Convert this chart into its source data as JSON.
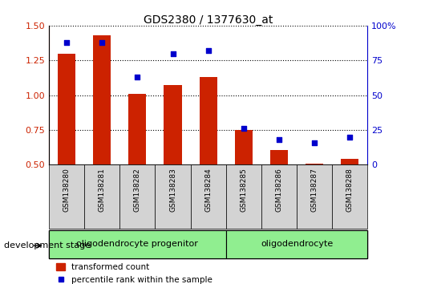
{
  "title": "GDS2380 / 1377630_at",
  "samples": [
    "GSM138280",
    "GSM138281",
    "GSM138282",
    "GSM138283",
    "GSM138284",
    "GSM138285",
    "GSM138286",
    "GSM138287",
    "GSM138288"
  ],
  "transformed_count": [
    1.295,
    1.43,
    1.01,
    1.07,
    1.13,
    0.75,
    0.605,
    0.505,
    0.545
  ],
  "percentile_rank": [
    88,
    88,
    63,
    80,
    82,
    26,
    18,
    16,
    20
  ],
  "ylim_left": [
    0.5,
    1.5
  ],
  "ylim_right": [
    0,
    100
  ],
  "yticks_left": [
    0.5,
    0.75,
    1.0,
    1.25,
    1.5
  ],
  "yticks_right": [
    0,
    25,
    50,
    75,
    100
  ],
  "groups": [
    {
      "label": "oligodendrocyte progenitor",
      "start": 0,
      "end": 5
    },
    {
      "label": "oligodendrocyte",
      "start": 5,
      "end": 9
    }
  ],
  "bar_color": "#cc2200",
  "dot_color": "#0000cc",
  "bar_width": 0.5,
  "tick_label_color_left": "#cc2200",
  "tick_label_color_right": "#0000cc",
  "legend_bar_label": "transformed count",
  "legend_dot_label": "percentile rank within the sample",
  "xlabel_stage": "development stage",
  "group1_label": "oligodendrocyte progenitor",
  "group2_label": "oligodendrocyte",
  "xlabels_bg": "#d3d3d3",
  "stage_bg": "#90ee90"
}
